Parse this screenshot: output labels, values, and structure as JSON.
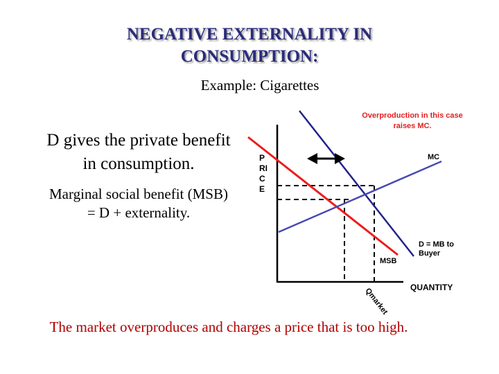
{
  "title": {
    "line1": "NEGATIVE EXTERNALITY IN",
    "line2": "CONSUMPTION:"
  },
  "example": "Example:  Cigarettes",
  "left_text": {
    "main": "D gives the private benefit in consumption.",
    "secondary": "Marginal social benefit (MSB) = D + externality."
  },
  "bottom_text": "The market overproduces and charges a price that is too high.",
  "diagram": {
    "note": "Overproduction in this case raises MC.",
    "y_axis_label": [
      "P",
      "RI",
      "C",
      "E"
    ],
    "x_axis_label": "QUANTITY",
    "curves": {
      "mc": "MC",
      "msb": "MSB",
      "demand": "D = MB to Buyer"
    },
    "q_market_label": "Qmarket",
    "colors": {
      "msb": "#ee1c1c",
      "demand": "#22228a",
      "mc": "#4848b4",
      "axis": "#000000"
    }
  }
}
